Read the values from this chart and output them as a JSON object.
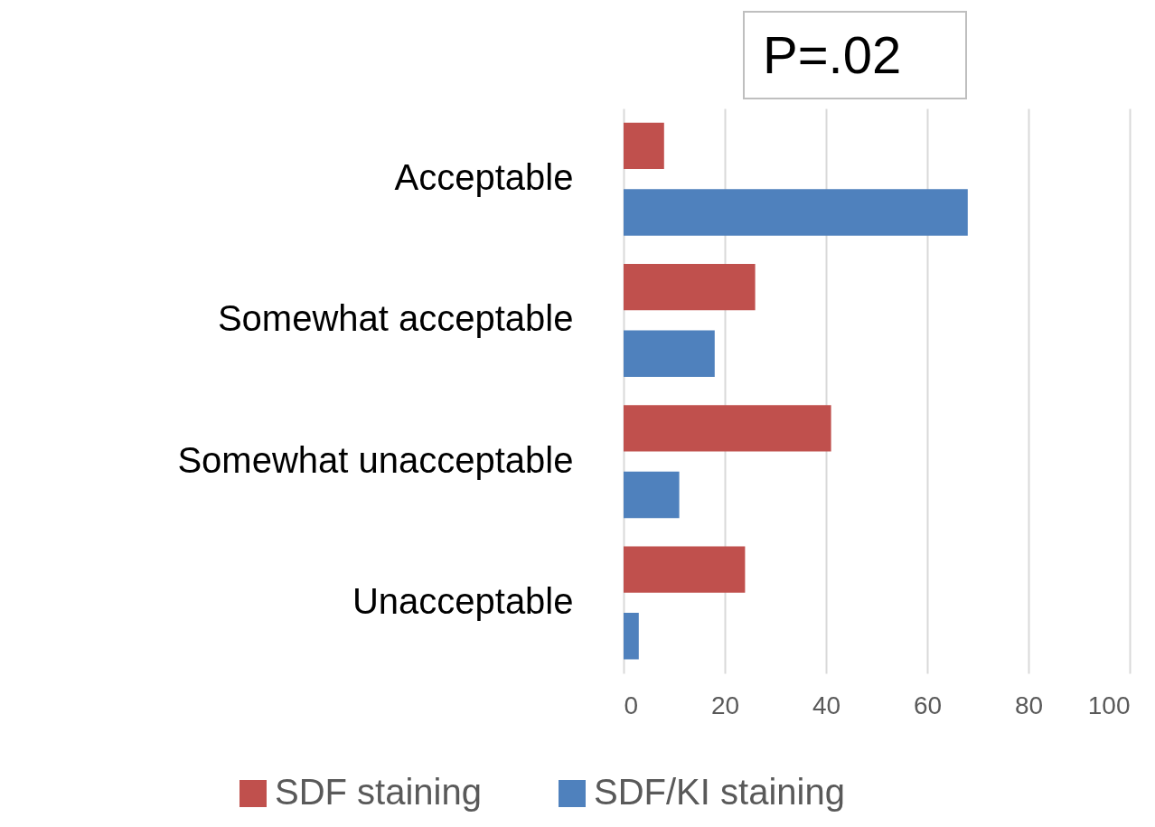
{
  "chart_data": {
    "type": "bar",
    "orientation": "horizontal",
    "categories": [
      "Acceptable",
      "Somewhat acceptable",
      "Somewhat unacceptable",
      "Unacceptable"
    ],
    "series": [
      {
        "name": "SDF staining",
        "color": "#c0504d",
        "values": [
          8,
          26,
          41,
          24
        ]
      },
      {
        "name": "SDF/KI staining",
        "color": "#4f81bd",
        "values": [
          68,
          18,
          11,
          3
        ]
      }
    ],
    "xlim": [
      0,
      100
    ],
    "xticks": [
      0,
      20,
      40,
      60,
      80,
      100
    ],
    "grid": "x",
    "legend": "bottom",
    "annotations": [
      "P=.02"
    ]
  }
}
